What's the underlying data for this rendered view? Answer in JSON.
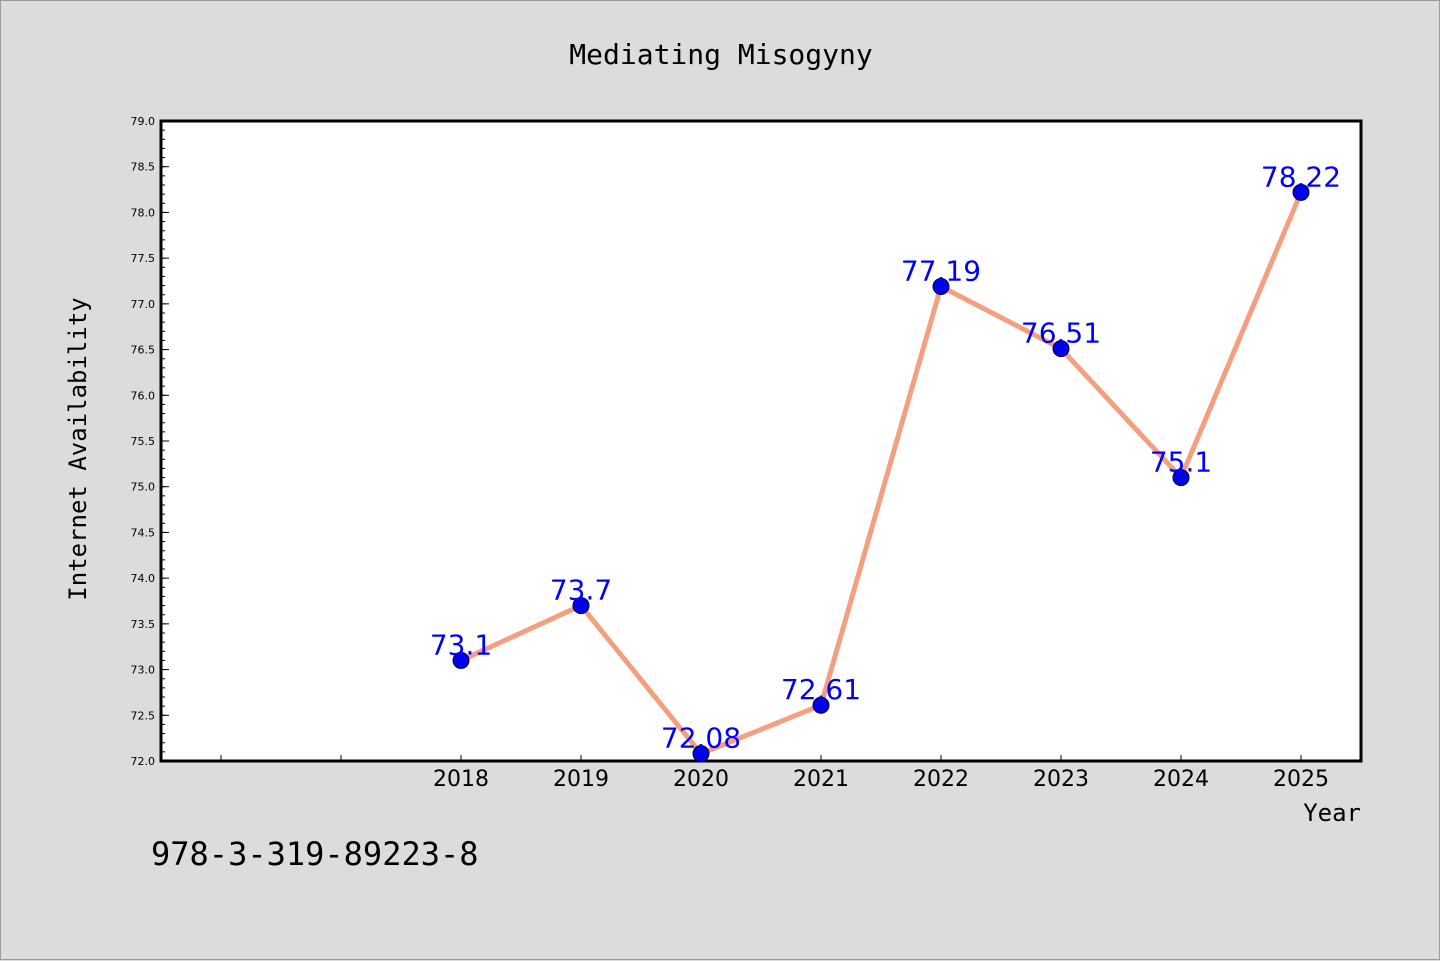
{
  "chart_data": {
    "type": "line",
    "title": "Mediating Misogyny",
    "xlabel": "Year",
    "ylabel": "Internet Availability",
    "x": [
      2018,
      2019,
      2020,
      2021,
      2022,
      2023,
      2024,
      2025
    ],
    "x_tick_labels": [
      "2018",
      "2019",
      "2020",
      "2021",
      "2022",
      "2023",
      "2024",
      "2025"
    ],
    "values": [
      73.1,
      73.7,
      72.08,
      72.61,
      77.19,
      76.51,
      75.1,
      78.22
    ],
    "data_labels": [
      "73.1",
      "73.7",
      "72.08",
      "72.61",
      "77.19",
      "76.51",
      "75.1",
      "78.22"
    ],
    "y_tick_labels": [
      "72.0",
      "72.5",
      "73.0",
      "73.5",
      "74.0",
      "74.5",
      "75.0",
      "75.5",
      "76.0",
      "76.5",
      "77.0",
      "77.5",
      "78.0",
      "78.5",
      "79.0"
    ],
    "xlim": [
      2015.5,
      2025.5
    ],
    "ylim": [
      72.0,
      79.0
    ],
    "grid": false,
    "legend": "none",
    "colors": {
      "line": "#f4a080",
      "marker": "#0000ee",
      "data_label": "#0000ff",
      "background": "#dcdcdc",
      "plot_area": "#ffffff"
    }
  },
  "footer_text": "978-3-319-89223-8"
}
